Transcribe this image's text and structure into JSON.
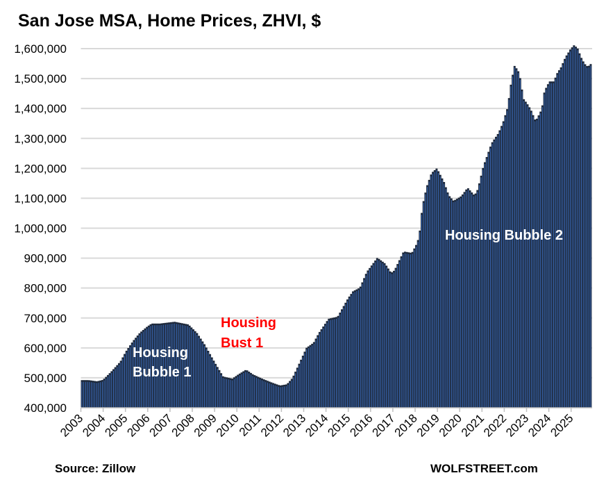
{
  "chart_data": {
    "type": "bar",
    "title": "San Jose MSA, Home Prices, ZHVI, $",
    "xlabel": "",
    "ylabel": "",
    "frequency": "monthly (bars interpolated between points read off the chart)",
    "ylim": [
      400000,
      1600000
    ],
    "y_ticks": [
      "400,000",
      "500,000",
      "600,000",
      "700,000",
      "800,000",
      "900,000",
      "1,000,000",
      "1,100,000",
      "1,200,000",
      "1,300,000",
      "1,400,000",
      "1,500,000",
      "1,600,000"
    ],
    "x_ticks": [
      "2003",
      "2004",
      "2005",
      "2006",
      "2007",
      "2008",
      "2009",
      "2010",
      "2011",
      "2012",
      "2013",
      "2014",
      "2015",
      "2016",
      "2017",
      "2018",
      "2019",
      "2020",
      "2021",
      "2022",
      "2023",
      "2024",
      "2025"
    ],
    "grid": true,
    "x": [
      2003.0,
      2003.3,
      2003.68,
      2003.95,
      2004.3,
      2004.73,
      2004.98,
      2005.3,
      2005.6,
      2005.9,
      2006.13,
      2006.5,
      2007.16,
      2007.78,
      2008.16,
      2008.5,
      2008.97,
      2009.34,
      2009.75,
      2010.02,
      2010.37,
      2010.68,
      2011.12,
      2011.52,
      2011.89,
      2012.2,
      2012.45,
      2012.77,
      2013.08,
      2013.4,
      2013.64,
      2014.07,
      2014.48,
      2014.95,
      2015.17,
      2015.48,
      2015.79,
      2016.26,
      2016.6,
      2016.88,
      2017.03,
      2017.44,
      2017.81,
      2018.06,
      2018.16,
      2018.28,
      2018.47,
      2018.69,
      2018.93,
      2019.25,
      2019.46,
      2019.68,
      2020.03,
      2020.31,
      2020.62,
      2020.77,
      2021.02,
      2021.39,
      2021.7,
      2021.9,
      2022.11,
      2022.27,
      2022.42,
      2022.58,
      2022.7,
      2022.8,
      2022.98,
      2023.14,
      2023.36,
      2023.57,
      2023.67,
      2023.76,
      2023.98,
      2024.2,
      2024.29,
      2024.5,
      2024.7,
      2024.92,
      2025.08,
      2025.24,
      2025.4,
      2025.55,
      2025.7,
      2025.86
    ],
    "values": [
      490000,
      490000,
      486000,
      491000,
      517000,
      552000,
      586000,
      621000,
      648000,
      667000,
      679000,
      679000,
      685000,
      676000,
      648000,
      610000,
      548000,
      502000,
      495000,
      509000,
      525000,
      509000,
      494000,
      482000,
      472000,
      476000,
      497000,
      548000,
      598000,
      615000,
      648000,
      695000,
      702000,
      764000,
      787000,
      799000,
      852000,
      899000,
      880000,
      848000,
      857000,
      920000,
      915000,
      950000,
      985000,
      1070000,
      1135000,
      1182000,
      1198000,
      1152000,
      1108000,
      1089000,
      1105000,
      1133000,
      1107000,
      1128000,
      1205000,
      1282000,
      1316000,
      1351000,
      1402000,
      1488000,
      1541000,
      1523000,
      1490000,
      1432000,
      1414000,
      1395000,
      1356000,
      1384000,
      1409000,
      1456000,
      1488000,
      1488000,
      1511000,
      1535000,
      1569000,
      1595000,
      1609000,
      1600000,
      1569000,
      1548000,
      1537000,
      1548000
    ],
    "annotations": [
      {
        "text_line1": "Housing",
        "text_line2": "Bubble 1",
        "color": "#ffffff"
      },
      {
        "text_line1": "Housing",
        "text_line2": "Bust 1",
        "color": "#ff0000"
      },
      {
        "text_line1": "Housing Bubble 2",
        "color": "#ffffff"
      }
    ],
    "colors": {
      "bar": "#1f2a3c",
      "bar_stripe": "#3b6fc4",
      "grid": "#d9d9d9"
    }
  },
  "footer": {
    "source": "Source: Zillow",
    "brand": "WOLFSTREET.com"
  }
}
